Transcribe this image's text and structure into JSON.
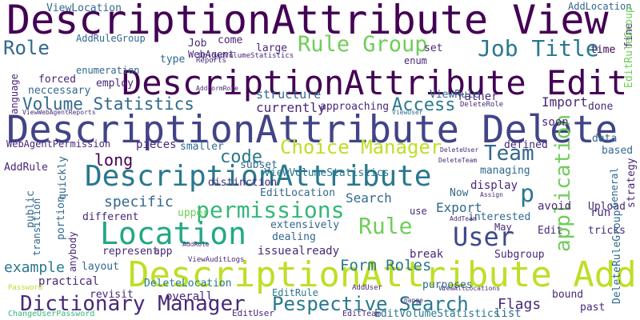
{
  "words": [
    "DescriptionAttribute View",
    "DescriptionAttribute Edit",
    "DescriptionAttribute Delete",
    "DescriptionAttribute",
    "DescriptionAttribute Add",
    "Location",
    "Pespective Search",
    "Dictionary Manager",
    "User",
    "Rule Group",
    "Job Title",
    "Role",
    "Volume Statistics",
    "permissions",
    "Rule",
    "Choice Manager",
    "Team",
    "code",
    "Access",
    "Form Roles",
    "Search",
    "Export",
    "application",
    "p",
    "Flags",
    "example",
    "specific",
    "long",
    "Import",
    "currently",
    "structure",
    "WebAgentPermission",
    "AddRule",
    "ViewLocation",
    "AddLocation",
    "AddRuleGroup",
    "WebAgent",
    "enumeration",
    "employ",
    "type",
    "come",
    "large",
    "Job",
    "set",
    "enum",
    "time",
    "fine",
    "EditRuleGroup",
    "ViewRule",
    "rather",
    "done",
    "soon",
    "data",
    "based",
    "managing",
    "defined",
    "smaller",
    "pieces",
    "subset",
    "quickly",
    "display",
    "Now",
    "avoid",
    "run",
    "Upload",
    "strategy",
    "distinction",
    "EditLocation",
    "upper",
    "different",
    "public",
    "portion",
    "extensively",
    "dealing",
    "issue",
    "already",
    "represent",
    "app",
    "layout",
    "practical",
    "revisit",
    "overall",
    "DeleteLocation",
    "EditRule",
    "use",
    "interested",
    "May",
    "Edit",
    "break",
    "Subgroup",
    "purposes",
    "list",
    "bound",
    "past",
    "tricks",
    "General",
    "ViewVolumeStatistics",
    "language",
    "forced",
    "neccessary",
    "approaching",
    "EditVolumeStatistics",
    "EditUser",
    "EditTeam",
    "anybody",
    "transition",
    "Password",
    "ChangeUserPassword",
    "DeleteRuleGroup",
    "UploadVolumeStatistics",
    "Reports",
    "ViewUser",
    "DeleteRole",
    "AddRole",
    "ViewAuditLogs",
    "AddUser",
    "ViewAllLocations",
    "AddTeam",
    "DeleteUser",
    "DeleteTeam",
    "Assign",
    "Change",
    "AddFormRole",
    "ViewWebAgentReports"
  ]
}
